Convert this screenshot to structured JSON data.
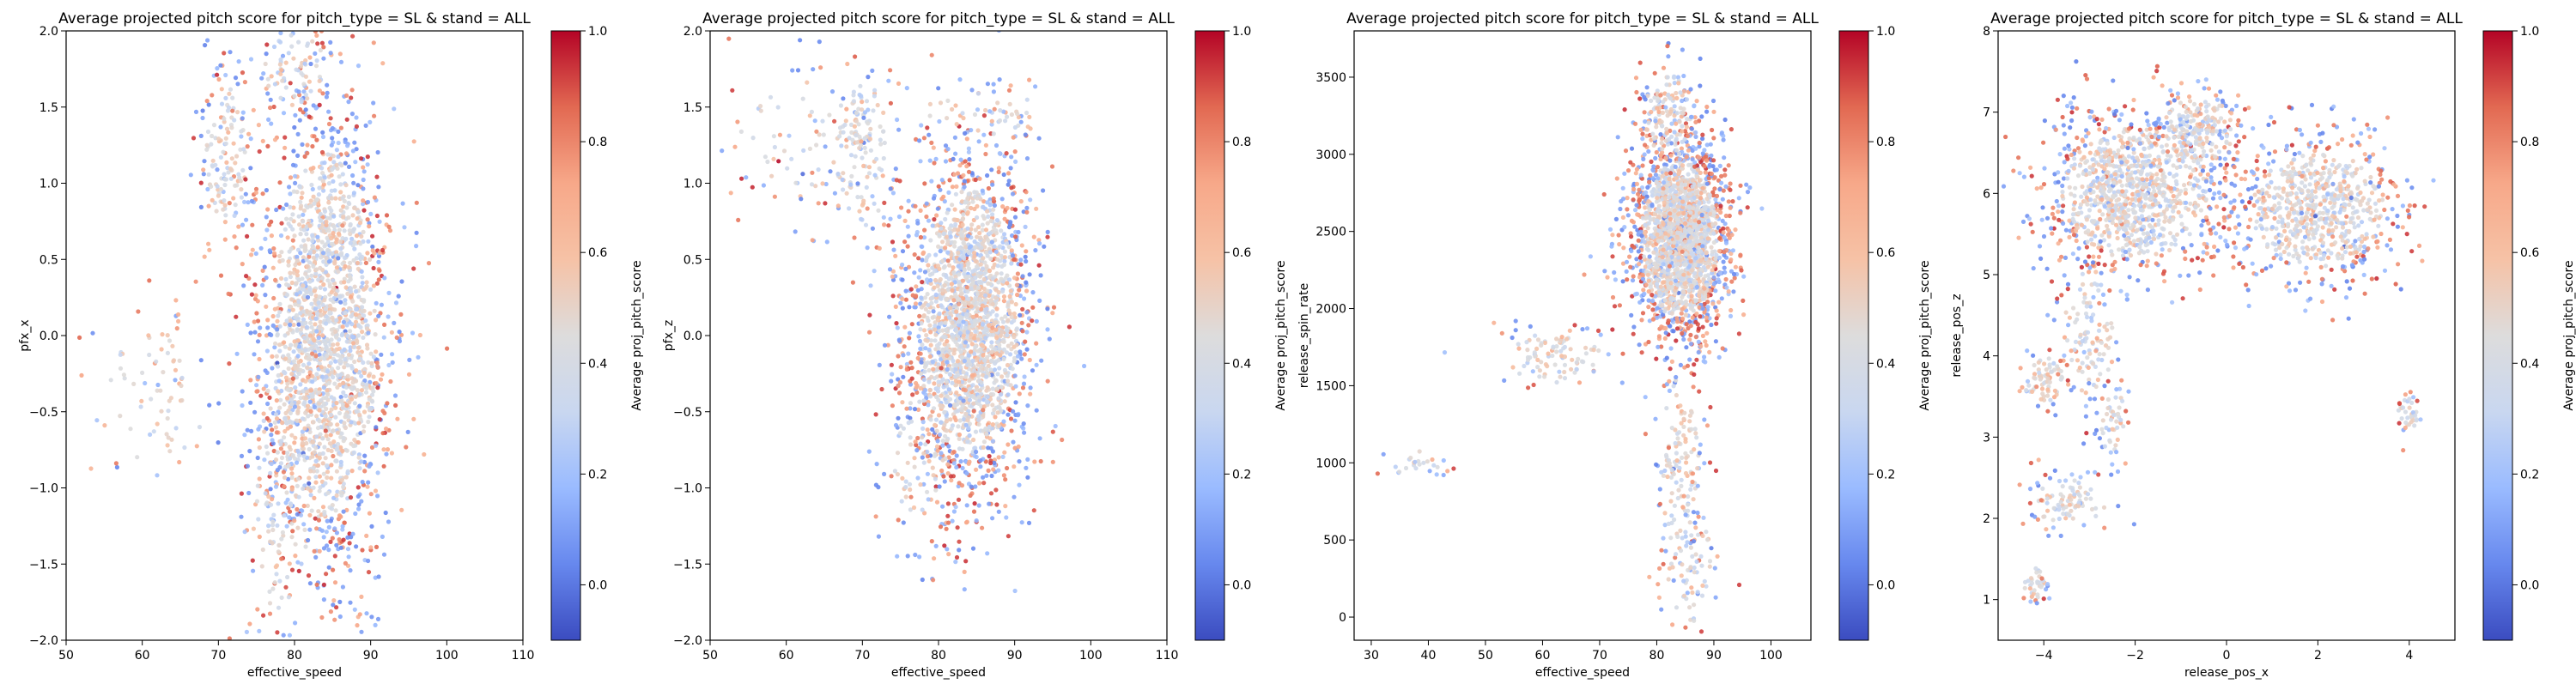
{
  "colormap": {
    "name": "coolwarm",
    "stops": [
      "#3b4cc0",
      "#6788ee",
      "#9abbff",
      "#c9d7f0",
      "#dddcdc",
      "#f6c2a6",
      "#f7a889",
      "#e26952",
      "#b40426"
    ],
    "neutral": "#d9d9d9"
  },
  "chart_data": [
    {
      "type": "scatter",
      "title": "Average projected pitch score for pitch_type = SL & stand = ALL",
      "xlabel": "effective_speed",
      "ylabel": "pfx_x",
      "xlim": [
        50,
        110
      ],
      "ylim": [
        -2.0,
        2.0
      ],
      "xticks": [
        50,
        60,
        70,
        80,
        90,
        100,
        110
      ],
      "yticks": [
        -2.0,
        -1.5,
        -1.0,
        -0.5,
        0.0,
        0.5,
        1.0,
        1.5,
        2.0
      ],
      "ytick_labels": [
        "−2.0",
        "−1.5",
        "−1.0",
        "−0.5",
        "0.0",
        "0.5",
        "1.0",
        "1.5",
        "2.0"
      ],
      "colorbar": {
        "label": "Average proj_pitch_score",
        "range": [
          -0.1,
          1.0
        ],
        "ticks": [
          0.0,
          0.2,
          0.4,
          0.6,
          0.8,
          1.0
        ],
        "tick_labels": [
          "0.0",
          "0.2",
          "0.4",
          "0.6",
          "0.8",
          "1.0"
        ]
      },
      "clusters": [
        {
          "cx": 84,
          "cy": 0.0,
          "sx": 4.2,
          "sy": 0.75,
          "weight": 0.82
        },
        {
          "cx": 71,
          "cy": 1.15,
          "sx": 1.6,
          "sy": 0.3,
          "weight": 0.06
        },
        {
          "cx": 78,
          "cy": -1.0,
          "sx": 2.5,
          "sy": 0.5,
          "weight": 0.06
        },
        {
          "cx": 62,
          "cy": -0.4,
          "sx": 4.0,
          "sy": 0.28,
          "weight": 0.03
        },
        {
          "cx": 80,
          "cy": 1.75,
          "sx": 2.5,
          "sy": 0.15,
          "weight": 0.03
        }
      ]
    },
    {
      "type": "scatter",
      "title": "Average projected pitch score for pitch_type = SL & stand = ALL",
      "xlabel": "effective_speed",
      "ylabel": "pfx_z",
      "xlim": [
        50,
        110
      ],
      "ylim": [
        -2.0,
        2.0
      ],
      "xticks": [
        50,
        60,
        70,
        80,
        90,
        100,
        110
      ],
      "yticks": [
        -2.0,
        -1.5,
        -1.0,
        -0.5,
        0.0,
        0.5,
        1.0,
        1.5,
        2.0
      ],
      "ytick_labels": [
        "−2.0",
        "−1.5",
        "−1.0",
        "−0.5",
        "0.0",
        "0.5",
        "1.0",
        "1.5",
        "2.0"
      ],
      "colorbar": {
        "label": "Average proj_pitch_score",
        "range": [
          -0.1,
          1.0
        ],
        "ticks": [
          0.0,
          0.2,
          0.4,
          0.6,
          0.8,
          1.0
        ],
        "tick_labels": [
          "0.0",
          "0.2",
          "0.4",
          "0.6",
          "0.8",
          "1.0"
        ]
      },
      "clusters": [
        {
          "cx": 84,
          "cy": 0.1,
          "sx": 4.0,
          "sy": 0.55,
          "weight": 0.84
        },
        {
          "cx": 70,
          "cy": 1.2,
          "sx": 2.2,
          "sy": 0.3,
          "weight": 0.06
        },
        {
          "cx": 78,
          "cy": -0.8,
          "sx": 2.5,
          "sy": 0.35,
          "weight": 0.05
        },
        {
          "cx": 62,
          "cy": 1.3,
          "sx": 5.0,
          "sy": 0.25,
          "weight": 0.03
        },
        {
          "cx": 86,
          "cy": 1.45,
          "sx": 5.0,
          "sy": 0.1,
          "weight": 0.02
        }
      ]
    },
    {
      "type": "scatter",
      "title": "Average projected pitch score for pitch_type = SL & stand = ALL",
      "xlabel": "effective_speed",
      "ylabel": "release_spin_rate",
      "xlim": [
        27,
        107
      ],
      "ylim": [
        -150,
        3800
      ],
      "xticks": [
        30,
        40,
        50,
        60,
        70,
        80,
        90,
        100
      ],
      "yticks": [
        0,
        500,
        1000,
        1500,
        2000,
        2500,
        3000,
        3500
      ],
      "ytick_labels": [
        "0",
        "500",
        "1000",
        "1500",
        "2000",
        "2500",
        "3000",
        "3500"
      ],
      "colorbar": {
        "label": "Average proj_pitch_score",
        "range": [
          -0.1,
          1.0
        ],
        "ticks": [
          0.0,
          0.2,
          0.4,
          0.6,
          0.8,
          1.0
        ],
        "tick_labels": [
          "0.0",
          "0.2",
          "0.4",
          "0.6",
          "0.8",
          "1.0"
        ]
      },
      "clusters": [
        {
          "cx": 84,
          "cy": 2450,
          "sx": 4.2,
          "sy": 320,
          "weight": 0.8
        },
        {
          "cx": 82,
          "cy": 3250,
          "sx": 2.5,
          "sy": 180,
          "weight": 0.06
        },
        {
          "cx": 84,
          "cy": 1000,
          "sx": 2.2,
          "sy": 350,
          "weight": 0.06
        },
        {
          "cx": 62,
          "cy": 1700,
          "sx": 5.0,
          "sy": 120,
          "weight": 0.04
        },
        {
          "cx": 38,
          "cy": 1000,
          "sx": 2.5,
          "sy": 60,
          "weight": 0.01
        },
        {
          "cx": 86,
          "cy": 300,
          "sx": 2.5,
          "sy": 220,
          "weight": 0.03
        }
      ]
    },
    {
      "type": "scatter",
      "title": "Average projected pitch score for pitch_type = SL & stand = ALL",
      "xlabel": "release_pos_x",
      "ylabel": "release_pos_z",
      "xlim": [
        -5.0,
        5.0
      ],
      "ylim": [
        0.5,
        8.0
      ],
      "xticks": [
        -4,
        -2,
        0,
        2,
        4
      ],
      "xtick_labels": [
        "−4",
        "−2",
        "0",
        "2",
        "4"
      ],
      "yticks": [
        1,
        2,
        3,
        4,
        5,
        6,
        7,
        8
      ],
      "ytick_labels": [
        "1",
        "2",
        "3",
        "4",
        "5",
        "6",
        "7",
        "8"
      ],
      "colorbar": {
        "label": "Average proj_pitch_score",
        "range": [
          -0.1,
          1.0
        ],
        "ticks": [
          0.0,
          0.2,
          0.4,
          0.6,
          0.8,
          1.0
        ],
        "tick_labels": [
          "0.0",
          "0.2",
          "0.4",
          "0.6",
          "0.8",
          "1.0"
        ]
      },
      "clusters": [
        {
          "cx": -2.0,
          "cy": 6.0,
          "sx": 1.0,
          "sy": 0.5,
          "weight": 0.42
        },
        {
          "cx": 2.0,
          "cy": 5.8,
          "sx": 0.9,
          "sy": 0.45,
          "weight": 0.3
        },
        {
          "cx": -0.6,
          "cy": 6.8,
          "sx": 0.5,
          "sy": 0.25,
          "weight": 0.08
        },
        {
          "cx": -3.0,
          "cy": 4.3,
          "sx": 0.35,
          "sy": 0.5,
          "weight": 0.05
        },
        {
          "cx": -4.0,
          "cy": 3.7,
          "sx": 0.3,
          "sy": 0.18,
          "weight": 0.03
        },
        {
          "cx": -3.4,
          "cy": 2.2,
          "sx": 0.55,
          "sy": 0.18,
          "weight": 0.04
        },
        {
          "cx": -2.5,
          "cy": 3.2,
          "sx": 0.18,
          "sy": 0.25,
          "weight": 0.02
        },
        {
          "cx": -4.2,
          "cy": 1.2,
          "sx": 0.15,
          "sy": 0.12,
          "weight": 0.015
        },
        {
          "cx": 4.0,
          "cy": 3.3,
          "sx": 0.15,
          "sy": 0.12,
          "weight": 0.015
        }
      ]
    }
  ]
}
